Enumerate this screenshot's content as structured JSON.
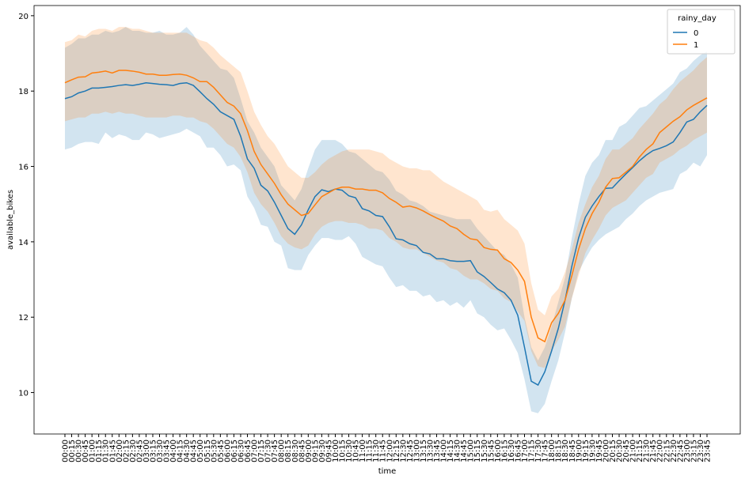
{
  "chart_data": {
    "type": "line",
    "x_label": "time",
    "y_label": "available_bikes",
    "legend_title": "rainy_day",
    "legend_loc": "upper right",
    "categories": [
      "00:00",
      "00:15",
      "00:30",
      "00:45",
      "01:00",
      "01:15",
      "01:30",
      "01:45",
      "02:00",
      "02:15",
      "02:30",
      "02:45",
      "03:00",
      "03:15",
      "03:30",
      "03:45",
      "04:00",
      "04:15",
      "04:30",
      "04:45",
      "05:00",
      "05:15",
      "05:30",
      "05:45",
      "06:00",
      "06:15",
      "06:30",
      "06:45",
      "07:00",
      "07:15",
      "07:30",
      "07:45",
      "08:00",
      "08:15",
      "08:30",
      "08:45",
      "09:00",
      "09:15",
      "09:30",
      "09:45",
      "10:00",
      "10:15",
      "10:30",
      "10:45",
      "11:00",
      "11:15",
      "11:30",
      "11:45",
      "12:00",
      "12:15",
      "12:30",
      "12:45",
      "13:00",
      "13:15",
      "13:30",
      "13:45",
      "14:00",
      "14:15",
      "14:30",
      "14:45",
      "15:00",
      "15:15",
      "15:30",
      "15:45",
      "16:00",
      "16:15",
      "16:30",
      "16:45",
      "17:00",
      "17:15",
      "17:30",
      "17:45",
      "18:00",
      "18:15",
      "18:30",
      "18:45",
      "19:00",
      "19:15",
      "19:30",
      "19:45",
      "20:00",
      "20:15",
      "20:30",
      "20:45",
      "21:00",
      "21:15",
      "21:30",
      "21:45",
      "22:00",
      "22:15",
      "22:30",
      "22:45",
      "23:00",
      "23:15",
      "23:30",
      "23:45"
    ],
    "ylim": [
      8.9,
      20.27
    ],
    "yticks": [
      10,
      12,
      14,
      16,
      18,
      20
    ],
    "band_opacity": 0.2,
    "series": [
      {
        "name": "0",
        "color": "#1f77b4",
        "values": [
          17.8,
          17.85,
          17.95,
          18.0,
          18.08,
          18.08,
          18.1,
          18.12,
          18.15,
          18.17,
          18.15,
          18.18,
          18.22,
          18.2,
          18.18,
          18.17,
          18.15,
          18.2,
          18.22,
          18.15,
          17.98,
          17.8,
          17.65,
          17.45,
          17.35,
          17.25,
          16.8,
          16.2,
          15.95,
          15.5,
          15.35,
          15.05,
          14.7,
          14.35,
          14.2,
          14.45,
          14.85,
          15.2,
          15.38,
          15.33,
          15.4,
          15.37,
          15.22,
          15.17,
          14.88,
          14.82,
          14.7,
          14.67,
          14.4,
          14.08,
          14.05,
          13.95,
          13.9,
          13.72,
          13.68,
          13.55,
          13.55,
          13.5,
          13.48,
          13.48,
          13.5,
          13.2,
          13.08,
          12.92,
          12.75,
          12.65,
          12.45,
          12.05,
          11.2,
          10.3,
          10.2,
          10.55,
          11.1,
          11.7,
          12.45,
          13.35,
          14.1,
          14.65,
          14.95,
          15.2,
          15.42,
          15.43,
          15.62,
          15.8,
          15.97,
          16.15,
          16.3,
          16.42,
          16.48,
          16.55,
          16.65,
          16.9,
          17.18,
          17.25,
          17.45,
          17.62
        ],
        "lower": [
          16.45,
          16.5,
          16.6,
          16.65,
          16.65,
          16.6,
          16.9,
          16.75,
          16.85,
          16.8,
          16.7,
          16.7,
          16.9,
          16.85,
          16.75,
          16.8,
          16.85,
          16.9,
          17.0,
          16.9,
          16.8,
          16.5,
          16.5,
          16.3,
          16.0,
          16.05,
          15.9,
          15.2,
          14.9,
          14.45,
          14.4,
          14.0,
          13.9,
          13.3,
          13.25,
          13.25,
          13.65,
          13.9,
          14.1,
          14.1,
          14.05,
          14.05,
          14.15,
          13.95,
          13.6,
          13.5,
          13.4,
          13.35,
          13.05,
          12.8,
          12.85,
          12.7,
          12.7,
          12.55,
          12.6,
          12.4,
          12.45,
          12.3,
          12.4,
          12.25,
          12.45,
          12.1,
          12.0,
          11.8,
          11.65,
          11.7,
          11.4,
          11.05,
          10.35,
          9.5,
          9.45,
          9.7,
          10.3,
          10.85,
          11.6,
          12.5,
          13.2,
          13.55,
          13.85,
          14.05,
          14.2,
          14.3,
          14.4,
          14.6,
          14.75,
          14.95,
          15.1,
          15.2,
          15.3,
          15.35,
          15.4,
          15.8,
          15.9,
          16.1,
          16.0,
          16.3
        ],
        "upper": [
          19.15,
          19.25,
          19.4,
          19.4,
          19.5,
          19.5,
          19.6,
          19.55,
          19.6,
          19.7,
          19.6,
          19.6,
          19.55,
          19.55,
          19.6,
          19.5,
          19.5,
          19.55,
          19.7,
          19.5,
          19.2,
          19.0,
          18.8,
          18.6,
          18.55,
          18.35,
          17.8,
          17.2,
          16.9,
          16.5,
          16.25,
          16.0,
          15.5,
          15.3,
          15.1,
          15.4,
          15.95,
          16.45,
          16.7,
          16.7,
          16.7,
          16.6,
          16.4,
          16.35,
          16.2,
          16.05,
          15.9,
          15.85,
          15.65,
          15.35,
          15.25,
          15.1,
          15.05,
          14.95,
          14.8,
          14.75,
          14.7,
          14.65,
          14.6,
          14.6,
          14.6,
          14.35,
          14.15,
          13.95,
          13.75,
          13.65,
          13.4,
          13.05,
          12.0,
          11.2,
          10.85,
          11.2,
          11.75,
          12.4,
          13.05,
          14.1,
          15.0,
          15.75,
          16.1,
          16.3,
          16.7,
          16.7,
          17.05,
          17.15,
          17.35,
          17.55,
          17.6,
          17.75,
          17.9,
          18.05,
          18.2,
          18.5,
          18.6,
          18.8,
          18.95,
          19.05
        ]
      },
      {
        "name": "1",
        "color": "#ff7f0e",
        "values": [
          18.22,
          18.3,
          18.37,
          18.38,
          18.48,
          18.5,
          18.53,
          18.48,
          18.55,
          18.55,
          18.53,
          18.5,
          18.45,
          18.45,
          18.42,
          18.42,
          18.44,
          18.45,
          18.42,
          18.35,
          18.25,
          18.25,
          18.1,
          17.9,
          17.7,
          17.6,
          17.4,
          16.95,
          16.4,
          16.05,
          15.8,
          15.55,
          15.25,
          15.0,
          14.85,
          14.7,
          14.75,
          14.98,
          15.2,
          15.3,
          15.4,
          15.45,
          15.45,
          15.4,
          15.4,
          15.37,
          15.37,
          15.3,
          15.15,
          15.05,
          14.92,
          14.95,
          14.9,
          14.82,
          14.72,
          14.63,
          14.55,
          14.42,
          14.35,
          14.2,
          14.08,
          14.05,
          13.85,
          13.8,
          13.78,
          13.55,
          13.45,
          13.25,
          12.95,
          12.0,
          11.45,
          11.35,
          11.85,
          12.1,
          12.45,
          13.1,
          13.8,
          14.35,
          14.75,
          15.05,
          15.45,
          15.68,
          15.7,
          15.85,
          16.0,
          16.25,
          16.45,
          16.6,
          16.9,
          17.05,
          17.2,
          17.32,
          17.5,
          17.62,
          17.72,
          17.82
        ],
        "lower": [
          17.2,
          17.25,
          17.3,
          17.3,
          17.4,
          17.4,
          17.45,
          17.4,
          17.45,
          17.4,
          17.4,
          17.35,
          17.3,
          17.3,
          17.3,
          17.3,
          17.35,
          17.35,
          17.3,
          17.3,
          17.2,
          17.15,
          17.0,
          16.8,
          16.6,
          16.5,
          16.25,
          15.85,
          15.3,
          15.0,
          14.8,
          14.5,
          14.15,
          13.95,
          13.85,
          13.8,
          13.9,
          14.2,
          14.4,
          14.5,
          14.55,
          14.55,
          14.5,
          14.5,
          14.45,
          14.35,
          14.35,
          14.3,
          14.1,
          14.0,
          13.85,
          13.8,
          13.8,
          13.7,
          13.6,
          13.5,
          13.45,
          13.3,
          13.25,
          13.1,
          13.0,
          13.0,
          12.9,
          12.75,
          12.7,
          12.5,
          12.4,
          12.15,
          11.9,
          11.1,
          10.7,
          10.65,
          11.1,
          11.4,
          11.75,
          12.5,
          13.1,
          13.7,
          14.05,
          14.35,
          14.7,
          14.9,
          15.0,
          15.1,
          15.3,
          15.5,
          15.7,
          15.8,
          16.1,
          16.2,
          16.3,
          16.45,
          16.55,
          16.7,
          16.8,
          16.9
        ],
        "upper": [
          19.3,
          19.35,
          19.5,
          19.45,
          19.6,
          19.65,
          19.65,
          19.6,
          19.7,
          19.7,
          19.65,
          19.65,
          19.6,
          19.55,
          19.55,
          19.55,
          19.55,
          19.55,
          19.55,
          19.45,
          19.35,
          19.3,
          19.15,
          18.95,
          18.8,
          18.65,
          18.5,
          18.0,
          17.45,
          17.1,
          16.8,
          16.6,
          16.3,
          16.0,
          15.85,
          15.7,
          15.7,
          15.85,
          16.05,
          16.2,
          16.3,
          16.4,
          16.45,
          16.45,
          16.45,
          16.45,
          16.4,
          16.35,
          16.2,
          16.1,
          16.0,
          15.95,
          15.95,
          15.9,
          15.9,
          15.75,
          15.6,
          15.5,
          15.4,
          15.3,
          15.2,
          15.1,
          14.85,
          14.8,
          14.85,
          14.6,
          14.45,
          14.3,
          13.95,
          12.9,
          12.2,
          12.05,
          12.55,
          12.75,
          13.2,
          13.8,
          14.5,
          15.0,
          15.45,
          15.75,
          16.2,
          16.45,
          16.45,
          16.6,
          16.75,
          17.0,
          17.2,
          17.4,
          17.65,
          17.8,
          18.05,
          18.25,
          18.4,
          18.55,
          18.75,
          18.9
        ]
      }
    ]
  }
}
